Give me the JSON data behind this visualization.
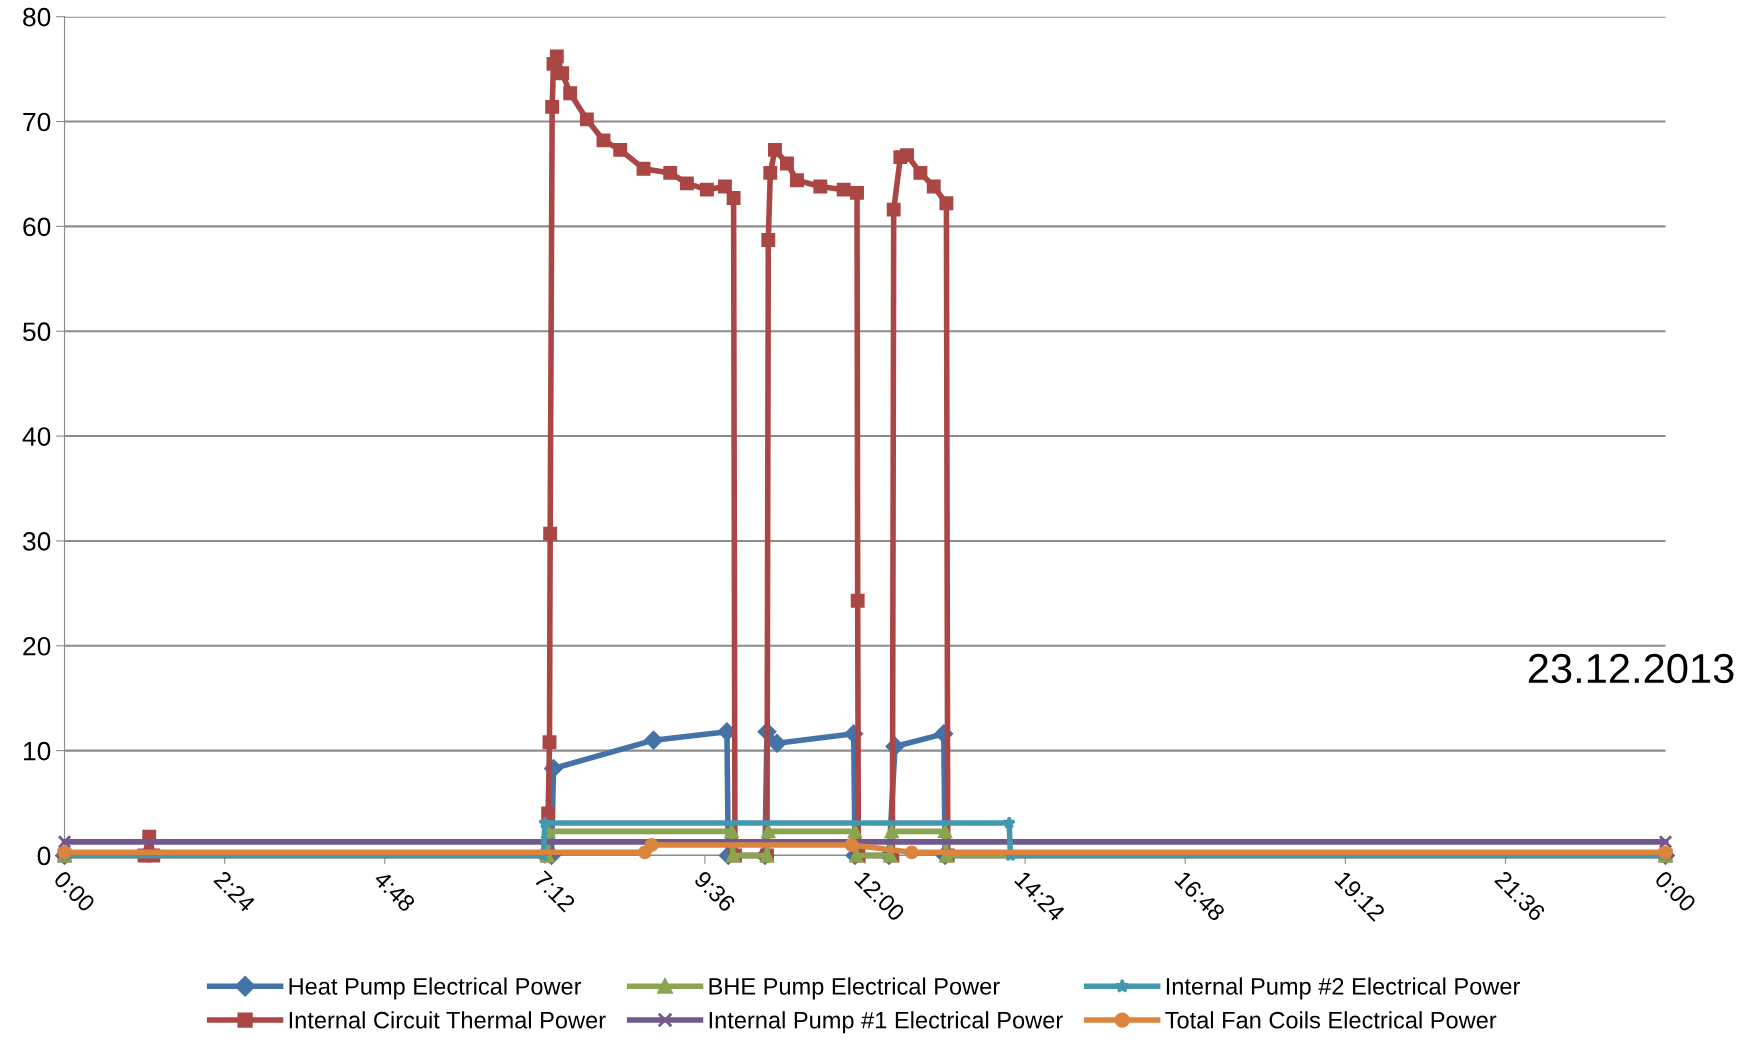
{
  "chart_data": {
    "type": "line",
    "annotations": [
      "23.12.2013"
    ],
    "xlim": [
      0,
      24
    ],
    "ylim": [
      0,
      80
    ],
    "xticks": [
      {
        "value": 0,
        "label": "0:00"
      },
      {
        "value": 2.4,
        "label": "2:24"
      },
      {
        "value": 4.8,
        "label": "4:48"
      },
      {
        "value": 7.2,
        "label": "7:12"
      },
      {
        "value": 9.6,
        "label": "9:36"
      },
      {
        "value": 12,
        "label": "12:00"
      },
      {
        "value": 14.4,
        "label": "14:24"
      },
      {
        "value": 16.8,
        "label": "16:48"
      },
      {
        "value": 19.2,
        "label": "19:12"
      },
      {
        "value": 21.6,
        "label": "21:36"
      },
      {
        "value": 24,
        "label": "0:00"
      }
    ],
    "yticks": [
      0,
      10,
      20,
      30,
      40,
      50,
      60,
      70,
      80
    ],
    "grid": "y",
    "legend": "bottom",
    "series": [
      {
        "name": "Heat Pump Electrical Power",
        "color": "#4572a7",
        "marker": "diamond",
        "x": [
          0,
          7.3,
          7.33,
          8.83,
          9.93,
          9.95,
          10.5,
          10.53,
          10.68,
          11.83,
          11.85,
          12.36,
          12.45,
          13.18,
          13.2,
          24
        ],
        "values": [
          0,
          0,
          8.3,
          11.0,
          11.8,
          0,
          0,
          11.8,
          10.7,
          11.6,
          0,
          0,
          10.4,
          11.6,
          0,
          0
        ]
      },
      {
        "name": "Internal Circuit Thermal Power",
        "color": "#aa4643",
        "marker": "square",
        "x": [
          0,
          1.2,
          1.27,
          1.33,
          7.24,
          7.25,
          7.27,
          7.28,
          7.31,
          7.33,
          7.38,
          7.46,
          7.58,
          7.83,
          8.08,
          8.33,
          8.68,
          9.08,
          9.33,
          9.63,
          9.9,
          10.03,
          10.05,
          10.53,
          10.55,
          10.58,
          10.65,
          10.83,
          10.98,
          11.33,
          11.68,
          11.88,
          11.89,
          11.9,
          12.41,
          12.43,
          12.53,
          12.63,
          12.83,
          13.03,
          13.22,
          13.24,
          24
        ],
        "values": [
          0,
          0,
          1.8,
          0,
          0,
          4,
          10.8,
          30.7,
          71.4,
          75.5,
          76.2,
          74.6,
          72.7,
          70.2,
          68.2,
          67.3,
          65.5,
          65.1,
          64.1,
          63.5,
          63.8,
          62.7,
          0,
          0,
          58.7,
          65.1,
          67.3,
          66.0,
          64.4,
          63.8,
          63.5,
          63.2,
          24.3,
          0,
          0,
          61.6,
          66.6,
          66.8,
          65.1,
          63.8,
          62.2,
          0,
          0
        ]
      },
      {
        "name": "BHE Pump Electrical Power",
        "color": "#89a54e",
        "marker": "triangle",
        "x": [
          0,
          7.24,
          7.25,
          10.0,
          10.02,
          10.53,
          10.55,
          11.85,
          11.87,
          12.38,
          12.4,
          13.2,
          13.22,
          24
        ],
        "values": [
          0,
          0,
          2.3,
          2.3,
          0,
          0,
          2.3,
          2.3,
          0,
          0,
          2.3,
          2.3,
          0,
          0
        ]
      },
      {
        "name": "Internal Pump #1 Electrical Power",
        "color": "#71588f",
        "marker": "cross",
        "x": [
          0,
          24
        ],
        "values": [
          1.3,
          1.3
        ]
      },
      {
        "name": "Internal Pump #2 Electrical Power",
        "color": "#4198af",
        "marker": "star",
        "x": [
          0,
          7.18,
          7.2,
          14.16,
          14.18,
          24
        ],
        "values": [
          0,
          0,
          3.1,
          3.1,
          0,
          0
        ]
      },
      {
        "name": "Total Fan Coils Electrical Power",
        "color": "#db843d",
        "marker": "circle",
        "x": [
          0,
          8.7,
          8.8,
          11.8,
          12.7,
          24
        ],
        "values": [
          0.3,
          0.3,
          1.0,
          1.0,
          0.3,
          0.3
        ]
      }
    ]
  }
}
